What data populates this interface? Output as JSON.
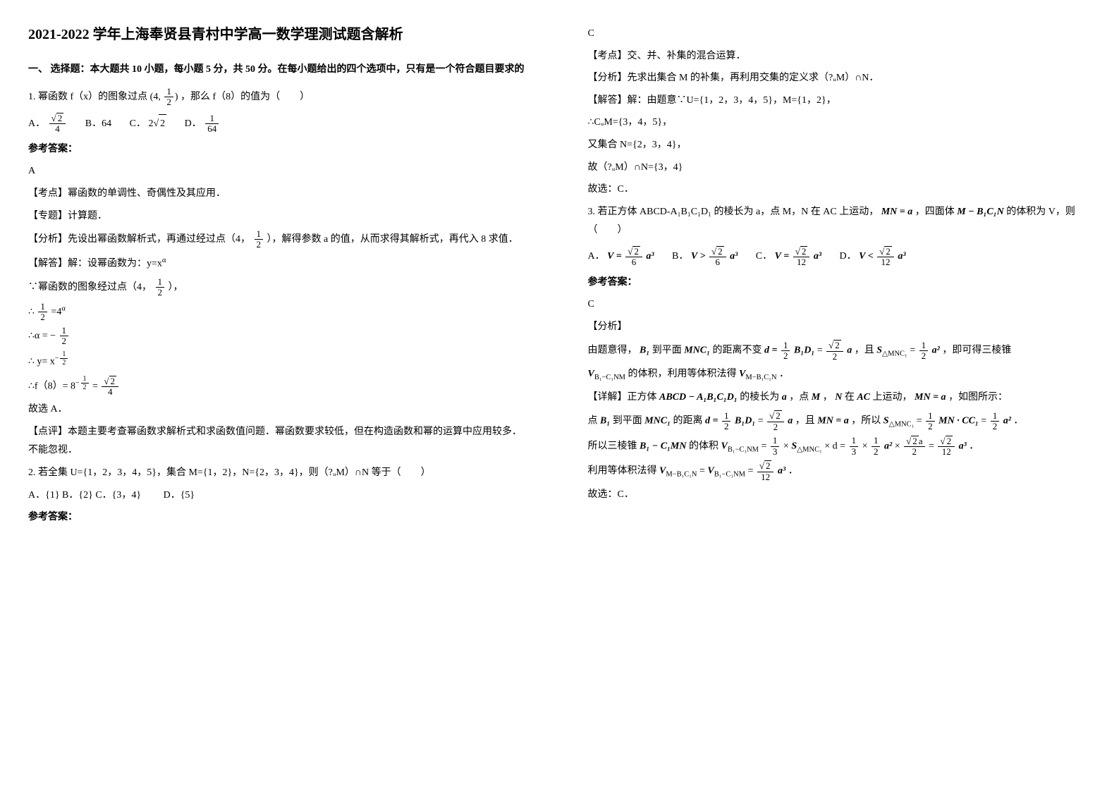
{
  "title": "2021-2022 学年上海奉贤县青村中学高一数学理测试题含解析",
  "section1": "一、 选择题：本大题共 10 小题，每小题 5 分，共 50 分。在每小题给出的四个选项中，只有是一个符合题目要求的",
  "q1": {
    "stem_a": "1. 幂函数 f（x）的图象过点 ",
    "point_a": "(4, ",
    "point_b": ")",
    "stem_b": "，那么 f（8）的值为（　　）",
    "optA": "A．",
    "optB": " B．64",
    "optC": "C．",
    "optC_val": "2",
    "optD": "D．",
    "answer_label": "参考答案：",
    "answer": "A",
    "tag1": "【考点】幂函数的单调性、奇偶性及其应用．",
    "tag2": "【专题】计算题．",
    "ana_a": "【分析】先设出幂函数解析式，再通过经过点（4，",
    "ana_b": "），解得参数 a 的值，从而求得其解析式，再代入 8 求值．",
    "sol1": "【解答】解：设幂函数为：y=x",
    "sol2_a": "∵幂函数的图象经过点（4，",
    "sol2_b": "），",
    "sol3_a": "∴ ",
    "sol3_b": "=4",
    "sol4_a": "∴α = −",
    "sol5_a": "∴ y= x",
    "sol6_a": "∴f（8）=",
    "sol6_b": "8",
    "sol6_c": "=",
    "sol7": "故选 A．",
    "comment": "【点评】本题主要考查幂函数求解析式和求函数值问题．幂函数要求较低，但在构造函数和幂的运算中应用较多．不能忽视．"
  },
  "q2": {
    "stem": "2. 若全集 U={1，2，3，4，5}，集合 M={1，2}，N={2，3，4}，则（?ᵤM）∩N 等于（　　）",
    "opts": "A．{1} B．{2} C．{3，4}　　 D．{5}",
    "answer_label": "参考答案：",
    "answer": "C",
    "tag1": "【考点】交、并、补集的混合运算．",
    "ana": "【分析】先求出集合 M 的补集，再利用交集的定义求（?ᵤM）∩N．",
    "sol1": "【解答】解：由题意∵U={1，2，3，4，5}，M={1，2}，",
    "sol2": "∴CᵤM={3，4，5}，",
    "sol3": "又集合 N={2，3，4}，",
    "sol4": "故（?ᵤM）∩N={3，4}",
    "sol5": "故选：C．"
  },
  "q3": {
    "stem_a": "3. 若正方体 ABCD-A₁B₁C₁D₁ 的棱长为 a，点 M，N 在 AC 上运动，",
    "mn_eq": "MN = a",
    "stem_b": "，四面体",
    "tet": "M − B₁C₁N",
    "stem_c": "的体积为 V，则（　　）",
    "optA_pre": "A．",
    "optA": "V =",
    "optA_num": "√2",
    "optA_den": "6",
    "optA_post": "a³",
    "optB_pre": "B．",
    "optB": "V >",
    "optB_num": "√2",
    "optB_den": "6",
    "optB_post": "a³",
    "optC_pre": "C．",
    "optC": "V =",
    "optC_num": "√2",
    "optC_den": "12",
    "optC_post": "a³",
    "optD_pre": "D．",
    "optD": "V <",
    "optD_num": "√2",
    "optD_den": "12",
    "optD_post": "a³",
    "answer_label": "参考答案：",
    "answer": "C",
    "ana_h": "【分析】",
    "ana1_a": "由题意得，",
    "ana1_b1": "B₁",
    "ana1_b2": " 到平面 ",
    "ana1_plane": "MNC₁",
    "ana1_c": " 的距离不变 ",
    "d_eq_a": "d =",
    "half": "1",
    "two": "2",
    "bd": "B₁D₁",
    "eq": "=",
    "sqrt2": "√2",
    "a_sym": "a",
    "ana1_d": "，且 ",
    "s_label": "S",
    "s_sub": "△MNC₁",
    "half_asq": "a²",
    "ana1_e": "，即可得三棱锥",
    "v_b": "V",
    "v_b_sub": "B₁−C₁NM",
    "ana1_f": " 的体积，利用等体积法得 ",
    "v_m_sub": "M−B₁C₁N",
    "ana1_g": "．",
    "det_a": "【详解】正方体 ",
    "cube": "ABCD − A₁B₁C₁D₁",
    "det_b": " 的棱长为 ",
    "det_c": "，点 ",
    "m_sym": "M",
    "det_d": "， ",
    "n_sym": "N",
    "det_e": " 在 ",
    "ac": "AC",
    "det_f": " 上运动，",
    "det_g": "，如图所示：",
    "line2_a": "点 ",
    "line2_b": " 到平面 ",
    "line2_c": " 的距离 ",
    "line2_d": "，且 ",
    "mn": "MN = a",
    "line2_e": "，所以 ",
    "mn_cc": "MN · CC₁",
    "line2_f": "．",
    "line3_a": "所以三棱锥 ",
    "b1c1mn": "B₁ − C₁MN",
    "line3_b": " 的体积 ",
    "third": "3",
    "times": "×",
    "step_a": "× d =",
    "twelve": "12",
    "line3_c": "．",
    "line4_a": "利用等体积法得 ",
    "line4_b": "．",
    "final": "故选：C．"
  },
  "math": {
    "num1": "1",
    "num2": "2",
    "num4": "4",
    "num64": "64",
    "sqrt2": "2",
    "alpha": "α",
    "minus_half_exp": "− ½"
  }
}
